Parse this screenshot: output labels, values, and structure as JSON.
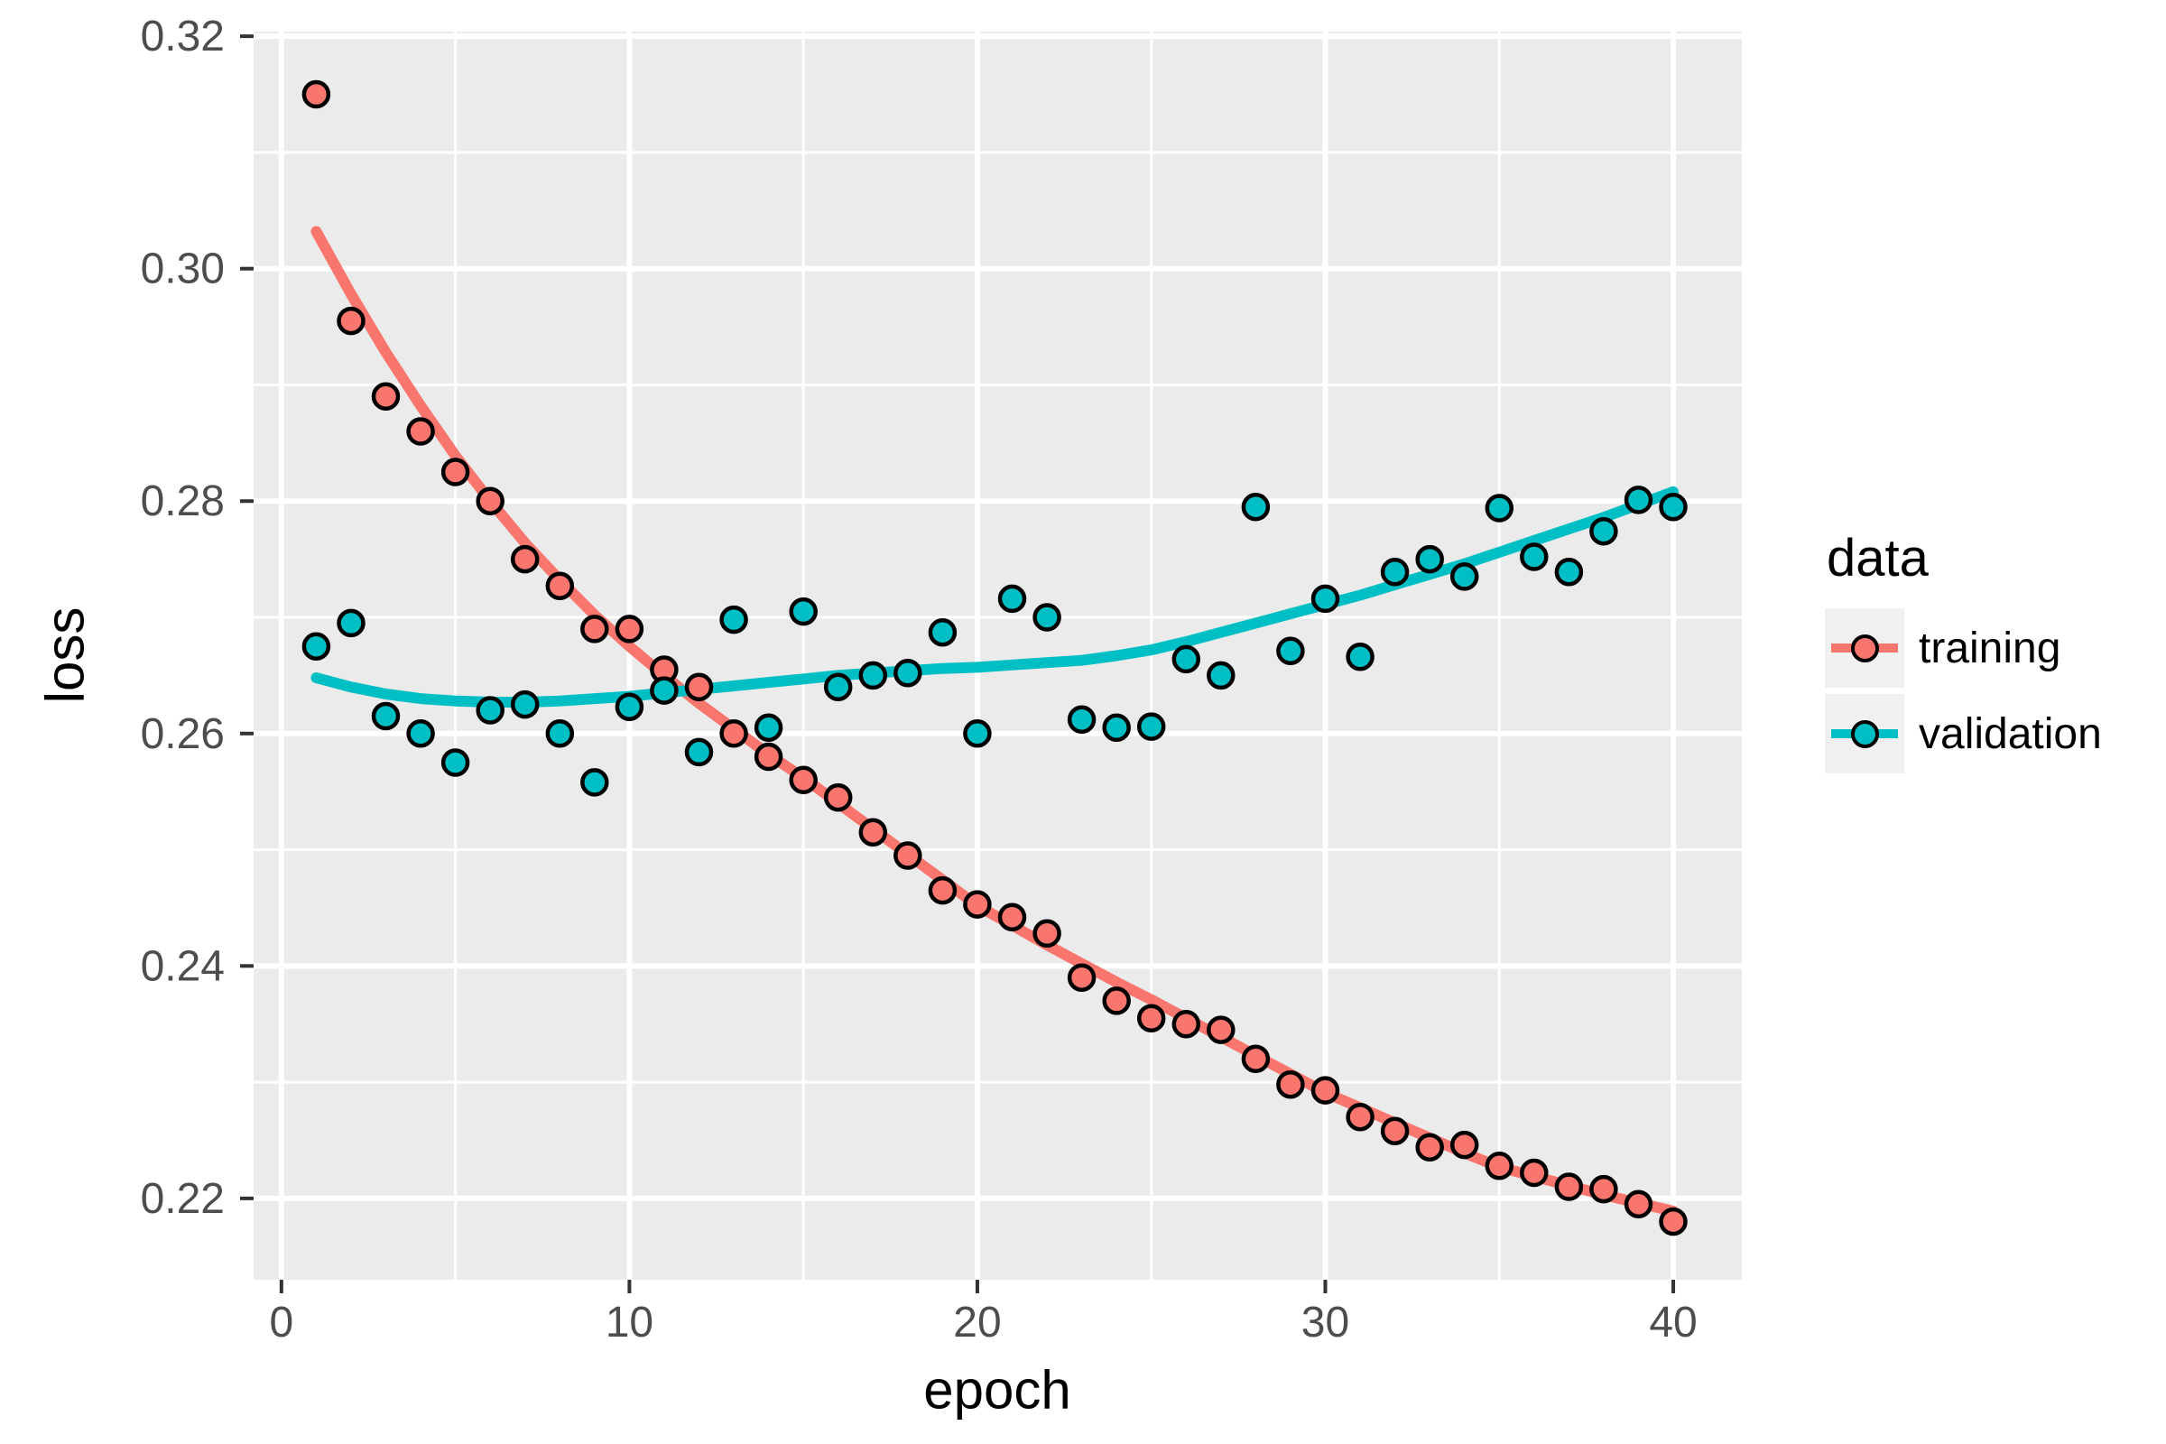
{
  "style": {
    "bg": "#FFFFFF",
    "panel_bg": "#EBEBEB",
    "grid_color": "#FFFFFF",
    "tick_mark_color": "#333333",
    "tick_label_color": "#4D4D4D",
    "axis_title_color": "#000000",
    "point_outline": "#000000",
    "legend_key_bg": "#F0F0F0",
    "training_color": "#F8766D",
    "validation_color": "#00BFC4"
  },
  "legend": {
    "title": "data",
    "items": [
      {
        "label": "training",
        "color": "#F8766D"
      },
      {
        "label": "validation",
        "color": "#00BFC4"
      }
    ]
  },
  "axes": {
    "x_tick_labels": [
      "0",
      "10",
      "20",
      "30",
      "40"
    ],
    "y_tick_labels": [
      "0.22",
      "0.24",
      "0.26",
      "0.28",
      "0.30",
      "0.32"
    ]
  },
  "chart_data": {
    "type": "scatter",
    "title": "",
    "xlabel": "epoch",
    "ylabel": "loss",
    "legend_position": "right",
    "grid": true,
    "xlim": [
      -0.8,
      41.97
    ],
    "ylim": [
      0.213,
      0.3204
    ],
    "x_ticks": [
      0,
      10,
      20,
      30,
      40
    ],
    "x_minor_ticks": [
      5,
      15,
      25,
      35
    ],
    "y_ticks": [
      0.22,
      0.24,
      0.26,
      0.28,
      0.3,
      0.32
    ],
    "y_minor_ticks": [
      0.23,
      0.25,
      0.27,
      0.29,
      0.31
    ],
    "x": [
      1,
      2,
      3,
      4,
      5,
      6,
      7,
      8,
      9,
      10,
      11,
      12,
      13,
      14,
      15,
      16,
      17,
      18,
      19,
      20,
      21,
      22,
      23,
      24,
      25,
      26,
      27,
      28,
      29,
      30,
      31,
      32,
      33,
      34,
      35,
      36,
      37,
      38,
      39,
      40
    ],
    "series": [
      {
        "name": "training",
        "color": "#F8766D",
        "values": [
          0.315,
          0.2955,
          0.289,
          0.286,
          0.2825,
          0.28,
          0.275,
          0.2727,
          0.269,
          0.269,
          0.2655,
          0.264,
          0.26,
          0.258,
          0.256,
          0.2545,
          0.2515,
          0.2495,
          0.2465,
          0.2453,
          0.2442,
          0.2428,
          0.239,
          0.237,
          0.2355,
          0.235,
          0.2345,
          0.232,
          0.2298,
          0.2293,
          0.227,
          0.2258,
          0.2244,
          0.2246,
          0.2228,
          0.2222,
          0.221,
          0.2208,
          0.2195,
          0.218
        ],
        "smooth": [
          0.3032,
          0.2978,
          0.2928,
          0.2882,
          0.2839,
          0.28,
          0.2764,
          0.2732,
          0.2702,
          0.2675,
          0.265,
          0.2626,
          0.2604,
          0.2582,
          0.2562,
          0.254,
          0.2518,
          0.2496,
          0.2474,
          0.2452,
          0.2435,
          0.2418,
          0.2402,
          0.2386,
          0.2371,
          0.2355,
          0.2339,
          0.2323,
          0.2307,
          0.2291,
          0.2278,
          0.2265,
          0.2252,
          0.2239,
          0.2227,
          0.2219,
          0.2211,
          0.2203,
          0.2196,
          0.2189
        ]
      },
      {
        "name": "validation",
        "color": "#00BFC4",
        "values": [
          0.2675,
          0.2695,
          0.2615,
          0.26,
          0.2575,
          0.262,
          0.2625,
          0.26,
          0.2558,
          0.2623,
          0.2637,
          0.2584,
          0.2698,
          0.2605,
          0.2705,
          0.264,
          0.265,
          0.2652,
          0.2687,
          0.26,
          0.2716,
          0.27,
          0.2612,
          0.2605,
          0.2606,
          0.2664,
          0.265,
          0.2795,
          0.2671,
          0.2716,
          0.2666,
          0.2739,
          0.275,
          0.2735,
          0.2794,
          0.2752,
          0.2739,
          0.2774,
          0.2801,
          0.2795
        ],
        "smooth": [
          0.2648,
          0.264,
          0.2634,
          0.263,
          0.2628,
          0.2627,
          0.2627,
          0.2628,
          0.263,
          0.2632,
          0.2635,
          0.2638,
          0.2641,
          0.2644,
          0.2647,
          0.265,
          0.2652,
          0.2654,
          0.2656,
          0.2657,
          0.2659,
          0.2661,
          0.2663,
          0.2667,
          0.2672,
          0.2679,
          0.2687,
          0.2695,
          0.2703,
          0.2711,
          0.2719,
          0.2728,
          0.2737,
          0.2746,
          0.2756,
          0.2766,
          0.2776,
          0.2786,
          0.2797,
          0.2808
        ]
      }
    ]
  }
}
